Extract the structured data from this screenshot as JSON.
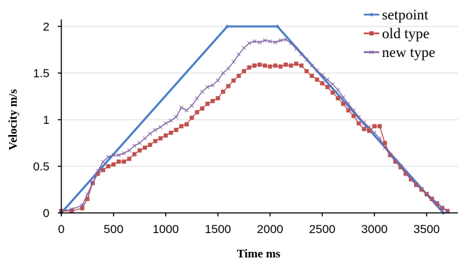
{
  "chart_data": {
    "type": "line",
    "title": "",
    "xlabel": "Time ms",
    "ylabel": "Velocity m/s",
    "xlim": [
      0,
      3800
    ],
    "ylim": [
      0,
      2.0
    ],
    "xticks": [
      0,
      500,
      1000,
      1500,
      2000,
      2500,
      3000,
      3500
    ],
    "yticks": [
      0,
      0.5,
      1,
      1.5,
      2
    ],
    "ytick_labels": [
      "0",
      "0.5",
      "1",
      "1.5",
      "2"
    ],
    "grid": "horizontal",
    "legend_position": "top-right",
    "series": [
      {
        "name": "setpoint",
        "color": "#4a7ec6",
        "marker": "small-diamond",
        "points": [
          [
            0,
            0
          ],
          [
            1590,
            2.0
          ],
          [
            2070,
            2.0
          ],
          [
            3660,
            0
          ]
        ]
      },
      {
        "name": "old type",
        "color": "#c0504d",
        "marker": "square",
        "points": [
          [
            0,
            0.02
          ],
          [
            100,
            0.02
          ],
          [
            200,
            0.05
          ],
          [
            250,
            0.15
          ],
          [
            300,
            0.32
          ],
          [
            350,
            0.42
          ],
          [
            400,
            0.46
          ],
          [
            450,
            0.5
          ],
          [
            500,
            0.52
          ],
          [
            550,
            0.55
          ],
          [
            600,
            0.55
          ],
          [
            650,
            0.58
          ],
          [
            700,
            0.63
          ],
          [
            750,
            0.67
          ],
          [
            800,
            0.7
          ],
          [
            850,
            0.73
          ],
          [
            900,
            0.77
          ],
          [
            950,
            0.8
          ],
          [
            1000,
            0.83
          ],
          [
            1050,
            0.86
          ],
          [
            1100,
            0.89
          ],
          [
            1150,
            0.93
          ],
          [
            1200,
            0.95
          ],
          [
            1250,
            1.02
          ],
          [
            1300,
            1.08
          ],
          [
            1350,
            1.12
          ],
          [
            1400,
            1.17
          ],
          [
            1450,
            1.2
          ],
          [
            1500,
            1.23
          ],
          [
            1550,
            1.3
          ],
          [
            1600,
            1.36
          ],
          [
            1650,
            1.42
          ],
          [
            1700,
            1.47
          ],
          [
            1750,
            1.52
          ],
          [
            1800,
            1.56
          ],
          [
            1850,
            1.58
          ],
          [
            1900,
            1.59
          ],
          [
            1950,
            1.58
          ],
          [
            2000,
            1.57
          ],
          [
            2050,
            1.58
          ],
          [
            2100,
            1.57
          ],
          [
            2150,
            1.59
          ],
          [
            2200,
            1.58
          ],
          [
            2250,
            1.6
          ],
          [
            2300,
            1.58
          ],
          [
            2350,
            1.52
          ],
          [
            2400,
            1.47
          ],
          [
            2450,
            1.43
          ],
          [
            2500,
            1.39
          ],
          [
            2550,
            1.35
          ],
          [
            2600,
            1.29
          ],
          [
            2650,
            1.23
          ],
          [
            2700,
            1.17
          ],
          [
            2750,
            1.1
          ],
          [
            2800,
            1.04
          ],
          [
            2850,
            0.96
          ],
          [
            2900,
            0.9
          ],
          [
            2950,
            0.88
          ],
          [
            3000,
            0.93
          ],
          [
            3050,
            0.93
          ],
          [
            3100,
            0.75
          ],
          [
            3150,
            0.62
          ],
          [
            3200,
            0.55
          ],
          [
            3250,
            0.49
          ],
          [
            3300,
            0.42
          ],
          [
            3350,
            0.36
          ],
          [
            3400,
            0.3
          ],
          [
            3450,
            0.25
          ],
          [
            3500,
            0.2
          ],
          [
            3550,
            0.15
          ],
          [
            3600,
            0.1
          ],
          [
            3650,
            0.05
          ],
          [
            3700,
            0.02
          ]
        ]
      },
      {
        "name": "new type",
        "color": "#8064a2",
        "marker": "cross",
        "points": [
          [
            0,
            0.02
          ],
          [
            100,
            0.04
          ],
          [
            200,
            0.08
          ],
          [
            250,
            0.2
          ],
          [
            300,
            0.32
          ],
          [
            350,
            0.45
          ],
          [
            400,
            0.55
          ],
          [
            450,
            0.6
          ],
          [
            500,
            0.62
          ],
          [
            550,
            0.62
          ],
          [
            600,
            0.64
          ],
          [
            650,
            0.67
          ],
          [
            700,
            0.72
          ],
          [
            750,
            0.75
          ],
          [
            800,
            0.8
          ],
          [
            850,
            0.85
          ],
          [
            900,
            0.89
          ],
          [
            950,
            0.92
          ],
          [
            1000,
            0.96
          ],
          [
            1050,
            0.99
          ],
          [
            1100,
            1.03
          ],
          [
            1150,
            1.13
          ],
          [
            1200,
            1.1
          ],
          [
            1250,
            1.15
          ],
          [
            1300,
            1.23
          ],
          [
            1350,
            1.3
          ],
          [
            1400,
            1.35
          ],
          [
            1450,
            1.37
          ],
          [
            1500,
            1.42
          ],
          [
            1550,
            1.5
          ],
          [
            1600,
            1.55
          ],
          [
            1650,
            1.62
          ],
          [
            1700,
            1.7
          ],
          [
            1750,
            1.77
          ],
          [
            1800,
            1.82
          ],
          [
            1850,
            1.84
          ],
          [
            1900,
            1.83
          ],
          [
            1950,
            1.85
          ],
          [
            2000,
            1.84
          ],
          [
            2050,
            1.83
          ],
          [
            2100,
            1.85
          ],
          [
            2150,
            1.86
          ],
          [
            2200,
            1.82
          ],
          [
            2250,
            1.76
          ],
          [
            2300,
            1.7
          ],
          [
            2350,
            1.64
          ],
          [
            2400,
            1.58
          ],
          [
            2450,
            1.53
          ],
          [
            2500,
            1.48
          ],
          [
            2550,
            1.43
          ],
          [
            2600,
            1.38
          ],
          [
            2650,
            1.32
          ],
          [
            2700,
            1.24
          ],
          [
            2750,
            1.17
          ],
          [
            2800,
            1.1
          ],
          [
            2850,
            1.03
          ],
          [
            2900,
            0.97
          ],
          [
            2950,
            0.92
          ],
          [
            3000,
            0.86
          ],
          [
            3050,
            0.8
          ],
          [
            3100,
            0.7
          ],
          [
            3150,
            0.62
          ],
          [
            3200,
            0.56
          ],
          [
            3250,
            0.5
          ],
          [
            3300,
            0.43
          ],
          [
            3350,
            0.37
          ],
          [
            3400,
            0.31
          ],
          [
            3450,
            0.26
          ],
          [
            3500,
            0.21
          ],
          [
            3550,
            0.16
          ],
          [
            3600,
            0.11
          ],
          [
            3650,
            0.06
          ],
          [
            3700,
            0.02
          ]
        ]
      }
    ]
  }
}
